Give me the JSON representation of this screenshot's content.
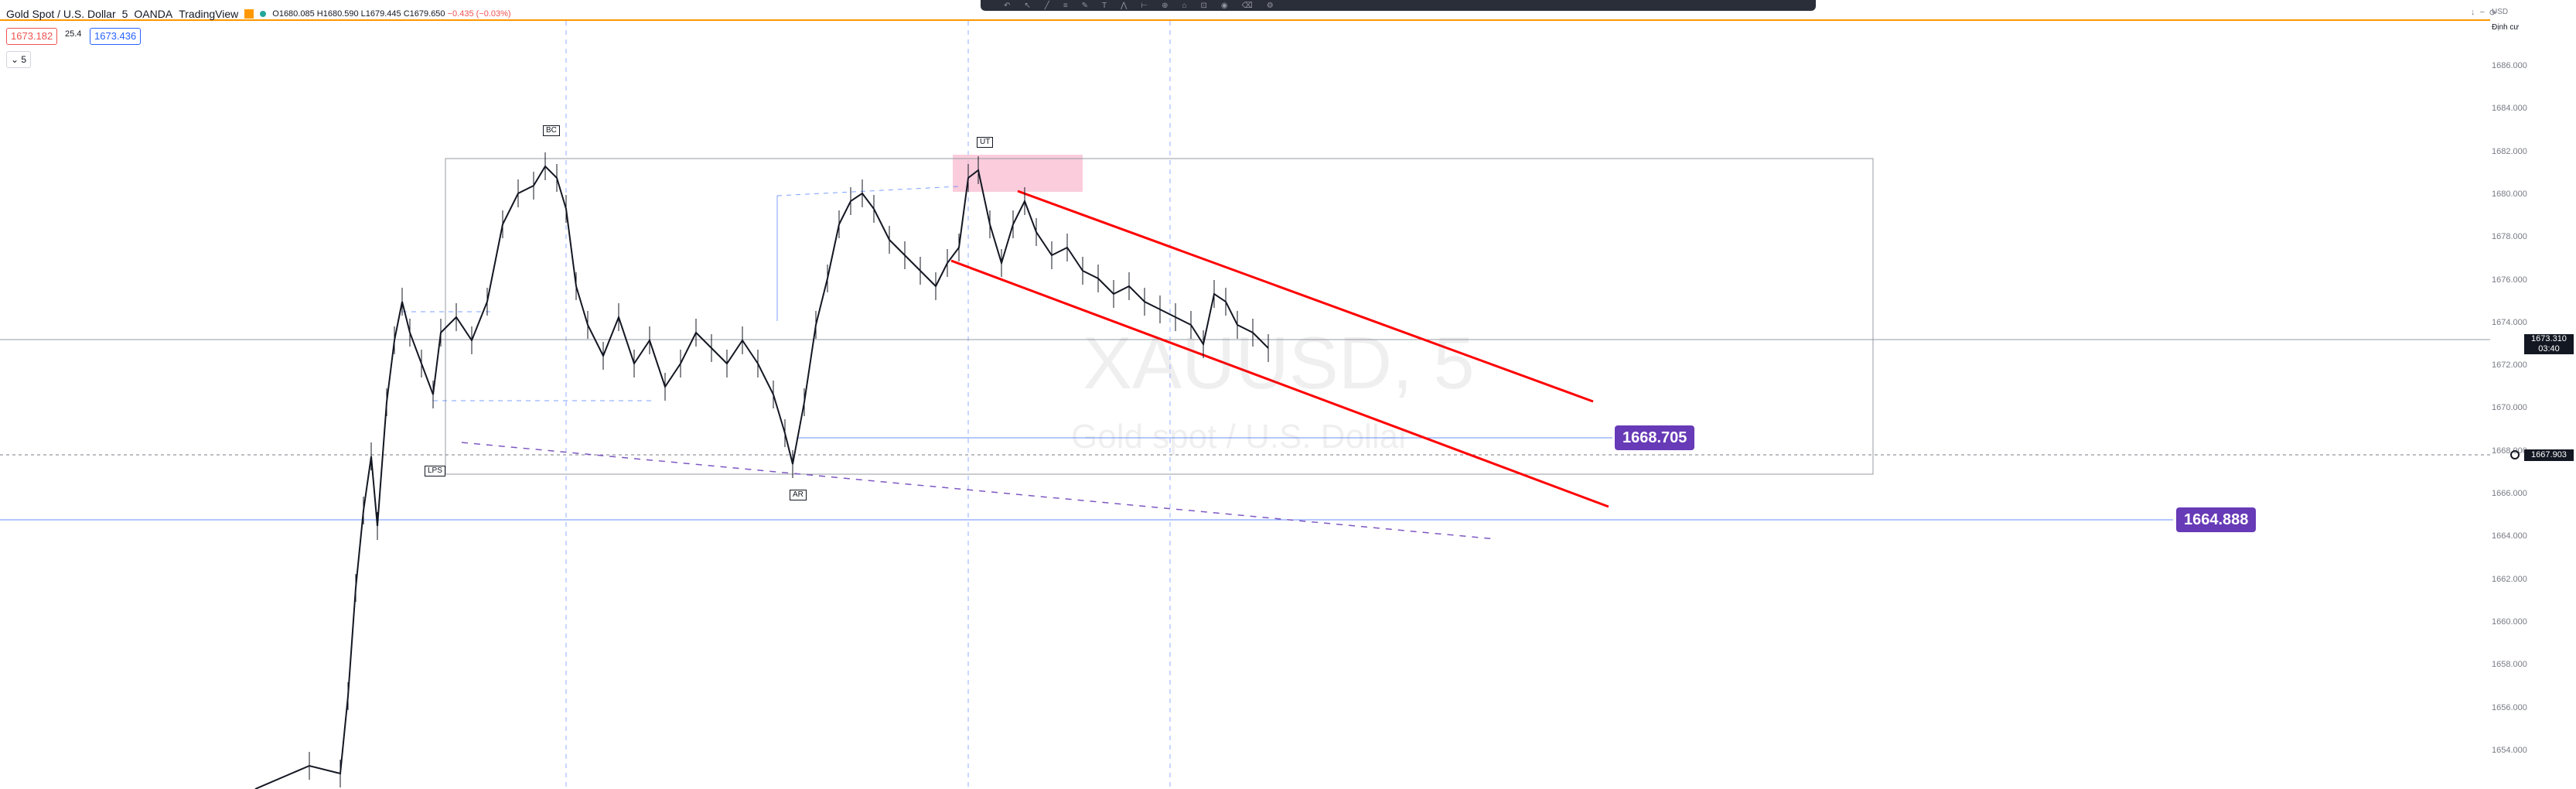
{
  "header": {
    "symbol": "Gold Spot / U.S. Dollar",
    "interval": "5",
    "broker": "OANDA",
    "platform": "TradingView",
    "ohlc": {
      "open": "O1680.085",
      "high": "H1680.590",
      "low": "L1679.445",
      "close": "C1679.650",
      "change": "−0.435 (−0.03%)"
    },
    "sell_price": "1673.182",
    "spread": "25.4",
    "buy_price": "1673.436",
    "interval_button": "5"
  },
  "toolbar": {
    "icons": [
      "undo-icon",
      "cursor-icon",
      "trend-line-icon",
      "fib-icon",
      "brush-icon",
      "text-icon",
      "pattern-icon",
      "ruler-icon",
      "zoom-icon",
      "magnet-icon",
      "lock-icon",
      "eye-icon",
      "trash-icon",
      "settings-icon"
    ]
  },
  "right_top": {
    "currency": "USD",
    "label": "Định cư"
  },
  "price_axis": {
    "labels": [
      "1686.000",
      "1684.000",
      "1682.000",
      "1680.000",
      "1678.000",
      "1676.000",
      "1674.000",
      "1672.000",
      "1670.000",
      "1668.000",
      "1666.000",
      "1664.000",
      "1662.000",
      "1660.000",
      "1658.000",
      "1656.000",
      "1654.000"
    ],
    "current_price": "1673.310",
    "countdown": "03:40",
    "crosshair_price": "1667.903"
  },
  "callouts": {
    "level1": "1668.705",
    "level2": "1664.888"
  },
  "markers": {
    "bc": "BC",
    "ut": "UT",
    "lps": "LPS",
    "ar": "AR"
  },
  "watermark": {
    "ticker": "XAUUSD, 5",
    "name": "Gold spot / U.S. Dollar"
  },
  "colors": {
    "channel": "#ff0000",
    "range_box": "#9598a1",
    "supply_zone": "#f8bbd0",
    "callout": "#673ab7",
    "guide_line": "#2962ff",
    "session_line": "#ff9800"
  }
}
